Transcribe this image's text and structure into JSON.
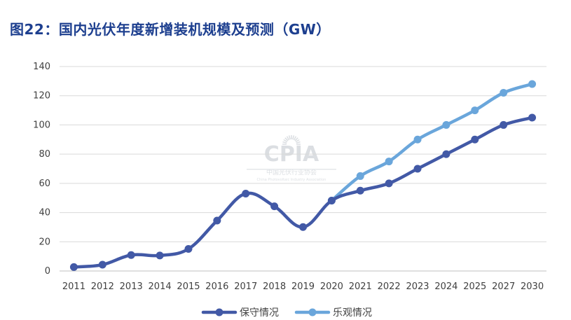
{
  "title": "图22：国内光伏年度新增装机规模及预测（GW）",
  "watermark": {
    "logo_text": "CPIA",
    "org_cn": "中国光伏行业协会",
    "org_en": "China Photovoltaic Industry Association"
  },
  "colors": {
    "conservative": "#4259a6",
    "optimistic": "#6aa6db",
    "grid": "#d9d9d9",
    "axis": "#bfbfbf",
    "title": "#1d3f8f"
  },
  "chart_data": {
    "type": "line",
    "title": "图22：国内光伏年度新增装机规模及预测（GW）",
    "xlabel": "",
    "ylabel": "",
    "categories": [
      "2011",
      "2012",
      "2013",
      "2014",
      "2015",
      "2016",
      "2017",
      "2018",
      "2019",
      "2020",
      "2021",
      "2022",
      "2023",
      "2024",
      "2025",
      "2027",
      "2030"
    ],
    "ylim": [
      0,
      140
    ],
    "yticks": [
      0,
      20,
      40,
      60,
      80,
      100,
      120,
      140
    ],
    "grid": true,
    "legend_position": "bottom",
    "series": [
      {
        "name": "保守情况",
        "color": "#4259a6",
        "values": [
          2.7,
          4.3,
          10.9,
          10.6,
          15.1,
          34.5,
          53,
          44.3,
          30.1,
          48.2,
          55,
          60,
          70,
          80,
          90,
          100,
          105
        ]
      },
      {
        "name": "乐观情况",
        "color": "#6aa6db",
        "values": [
          null,
          null,
          null,
          null,
          null,
          null,
          null,
          null,
          null,
          48.2,
          65,
          75,
          90,
          100,
          110,
          122,
          128
        ]
      }
    ]
  }
}
